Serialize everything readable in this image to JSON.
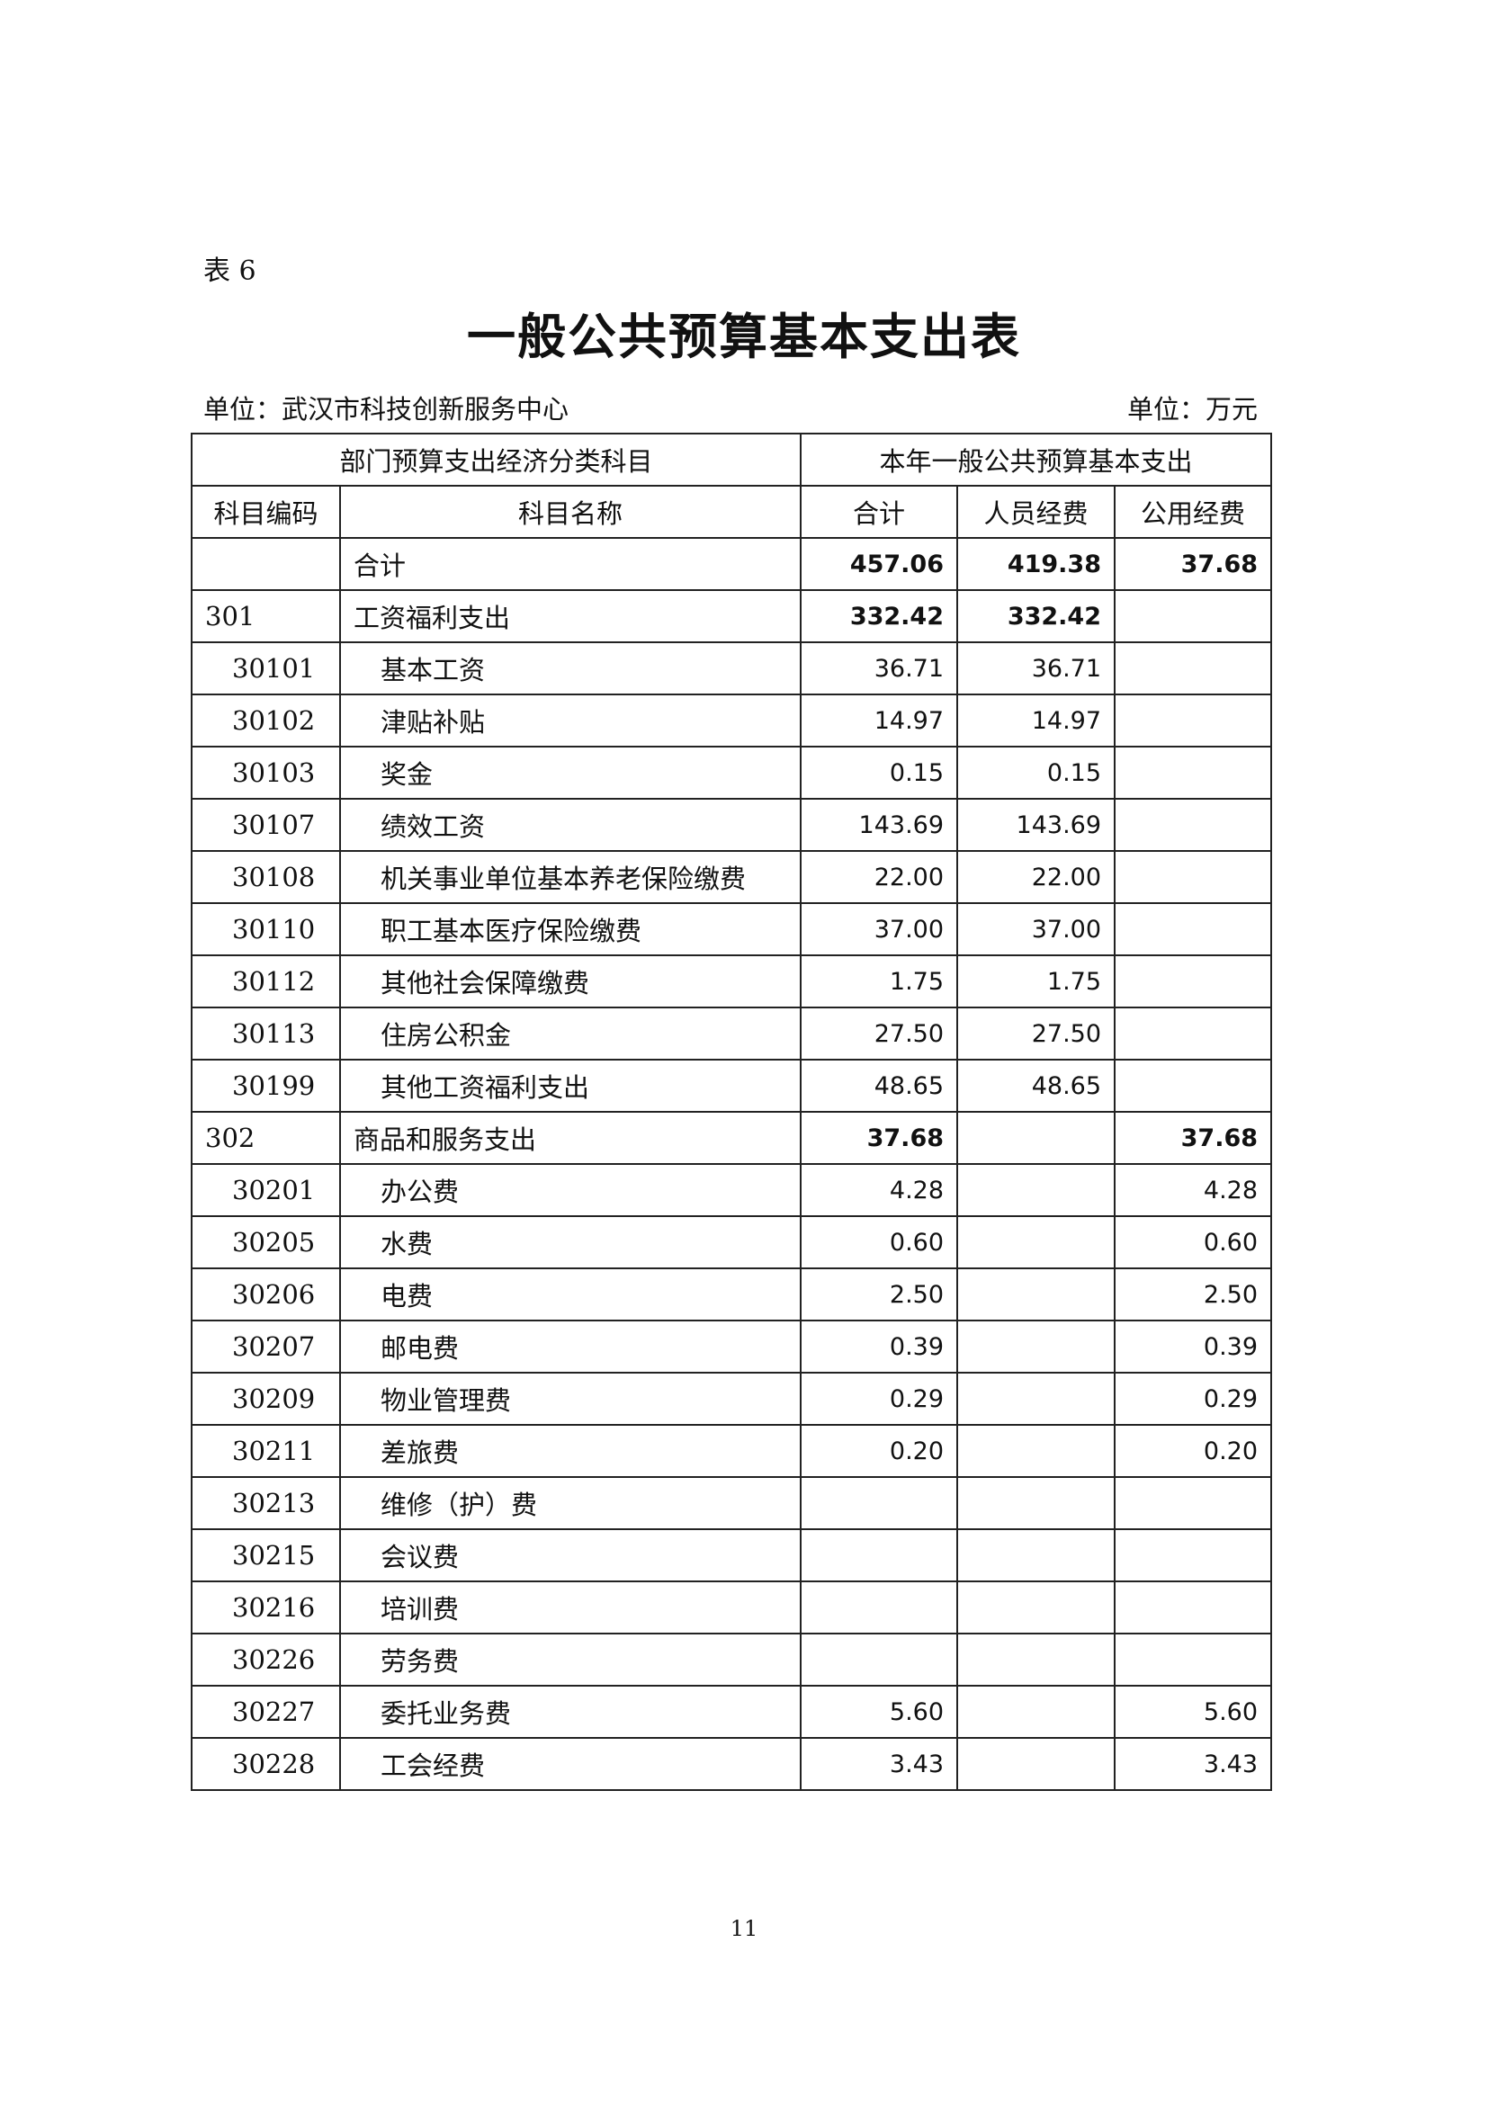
{
  "table_tag": "表 6",
  "title": "一般公共预算基本支出表",
  "unit_left": "单位：武汉市科技创新服务中心",
  "unit_right": "单位：万元",
  "header": {
    "group_left": "部门预算支出经济分类科目",
    "group_right": "本年一般公共预算基本支出",
    "columns": [
      "科目编码",
      "科目名称",
      "合计",
      "人员经费",
      "公用经费"
    ]
  },
  "rows": [
    {
      "code": "",
      "name": "合计",
      "total": "457.06",
      "personnel": "419.38",
      "public": "37.68",
      "level": 0
    },
    {
      "code": "301",
      "name": "工资福利支出",
      "total": "332.42",
      "personnel": "332.42",
      "public": "",
      "level": 1
    },
    {
      "code": "30101",
      "name": "基本工资",
      "total": "36.71",
      "personnel": "36.71",
      "public": "",
      "level": 2
    },
    {
      "code": "30102",
      "name": "津贴补贴",
      "total": "14.97",
      "personnel": "14.97",
      "public": "",
      "level": 2
    },
    {
      "code": "30103",
      "name": "奖金",
      "total": "0.15",
      "personnel": "0.15",
      "public": "",
      "level": 2
    },
    {
      "code": "30107",
      "name": "绩效工资",
      "total": "143.69",
      "personnel": "143.69",
      "public": "",
      "level": 2
    },
    {
      "code": "30108",
      "name": "机关事业单位基本养老保险缴费",
      "total": "22.00",
      "personnel": "22.00",
      "public": "",
      "level": 2
    },
    {
      "code": "30110",
      "name": "职工基本医疗保险缴费",
      "total": "37.00",
      "personnel": "37.00",
      "public": "",
      "level": 2
    },
    {
      "code": "30112",
      "name": "其他社会保障缴费",
      "total": "1.75",
      "personnel": "1.75",
      "public": "",
      "level": 2
    },
    {
      "code": "30113",
      "name": "住房公积金",
      "total": "27.50",
      "personnel": "27.50",
      "public": "",
      "level": 2
    },
    {
      "code": "30199",
      "name": "其他工资福利支出",
      "total": "48.65",
      "personnel": "48.65",
      "public": "",
      "level": 2
    },
    {
      "code": "302",
      "name": "商品和服务支出",
      "total": "37.68",
      "personnel": "",
      "public": "37.68",
      "level": 1
    },
    {
      "code": "30201",
      "name": "办公费",
      "total": "4.28",
      "personnel": "",
      "public": "4.28",
      "level": 2
    },
    {
      "code": "30205",
      "name": "水费",
      "total": "0.60",
      "personnel": "",
      "public": "0.60",
      "level": 2
    },
    {
      "code": "30206",
      "name": "电费",
      "total": "2.50",
      "personnel": "",
      "public": "2.50",
      "level": 2
    },
    {
      "code": "30207",
      "name": "邮电费",
      "total": "0.39",
      "personnel": "",
      "public": "0.39",
      "level": 2
    },
    {
      "code": "30209",
      "name": "物业管理费",
      "total": "0.29",
      "personnel": "",
      "public": "0.29",
      "level": 2
    },
    {
      "code": "30211",
      "name": "差旅费",
      "total": "0.20",
      "personnel": "",
      "public": "0.20",
      "level": 2
    },
    {
      "code": "30213",
      "name": "维修（护）费",
      "total": "",
      "personnel": "",
      "public": "",
      "level": 2
    },
    {
      "code": "30215",
      "name": "会议费",
      "total": "",
      "personnel": "",
      "public": "",
      "level": 2
    },
    {
      "code": "30216",
      "name": "培训费",
      "total": "",
      "personnel": "",
      "public": "",
      "level": 2
    },
    {
      "code": "30226",
      "name": "劳务费",
      "total": "",
      "personnel": "",
      "public": "",
      "level": 2
    },
    {
      "code": "30227",
      "name": "委托业务费",
      "total": "5.60",
      "personnel": "",
      "public": "5.60",
      "level": 2
    },
    {
      "code": "30228",
      "name": "工会经费",
      "total": "3.43",
      "personnel": "",
      "public": "3.43",
      "level": 2
    }
  ],
  "page_number": "11"
}
